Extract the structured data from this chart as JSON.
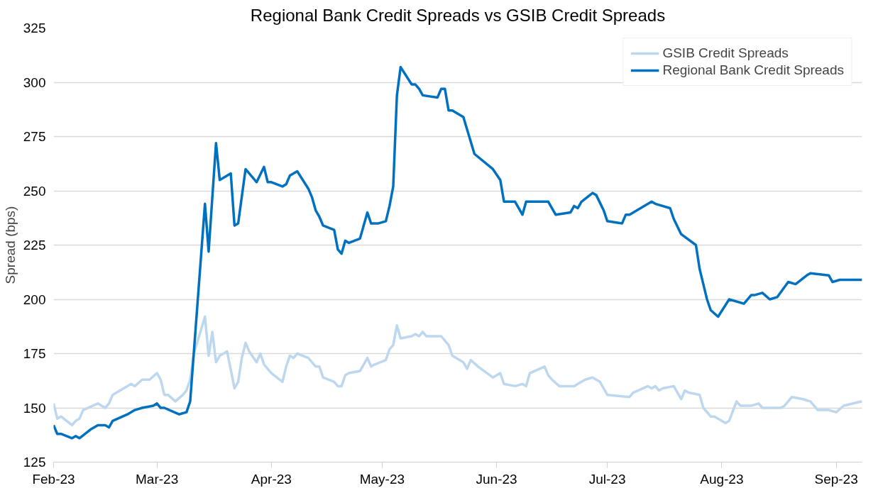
{
  "chart_data": {
    "type": "line",
    "title": "Regional Bank Credit Spreads vs GSIB Credit Spreads",
    "ylabel": "Spread (bps)",
    "ylim": [
      125,
      325
    ],
    "yticks": [
      125,
      150,
      175,
      200,
      225,
      250,
      275,
      300,
      325
    ],
    "xlim": [
      "2023-02-01",
      "2023-09-08"
    ],
    "xticks": [
      {
        "value": "2023-02-01",
        "label": "Feb-23"
      },
      {
        "value": "2023-03-01",
        "label": "Mar-23"
      },
      {
        "value": "2023-04-01",
        "label": "Apr-23"
      },
      {
        "value": "2023-05-01",
        "label": "May-23"
      },
      {
        "value": "2023-06-01",
        "label": "Jun-23"
      },
      {
        "value": "2023-07-01",
        "label": "Jul-23"
      },
      {
        "value": "2023-08-01",
        "label": "Aug-23"
      },
      {
        "value": "2023-09-01",
        "label": "Sep-23"
      }
    ],
    "grid": "y",
    "legend": "top right",
    "marker": "none",
    "line_style": "solid",
    "series": [
      {
        "name": "GSIB Credit Spreads",
        "color": "#bdd7ee",
        "x": [
          "2023-02-01",
          "2023-02-02",
          "2023-02-03",
          "2023-02-06",
          "2023-02-07",
          "2023-02-08",
          "2023-02-09",
          "2023-02-13",
          "2023-02-15",
          "2023-02-16",
          "2023-02-17",
          "2023-02-22",
          "2023-02-23",
          "2023-02-25",
          "2023-02-27",
          "2023-03-01",
          "2023-03-02",
          "2023-03-03",
          "2023-03-04",
          "2023-03-06",
          "2023-03-08",
          "2023-03-09",
          "2023-03-10",
          "2023-03-11",
          "2023-03-14",
          "2023-03-15",
          "2023-03-16",
          "2023-03-17",
          "2023-03-18",
          "2023-03-20",
          "2023-03-22",
          "2023-03-23",
          "2023-03-24",
          "2023-03-25",
          "2023-03-26",
          "2023-03-28",
          "2023-03-29",
          "2023-03-30",
          "2023-04-01",
          "2023-04-04",
          "2023-04-05",
          "2023-04-06",
          "2023-04-07",
          "2023-04-08",
          "2023-04-11",
          "2023-04-12",
          "2023-04-13",
          "2023-04-14",
          "2023-04-15",
          "2023-04-18",
          "2023-04-19",
          "2023-04-20",
          "2023-04-21",
          "2023-04-22",
          "2023-04-25",
          "2023-04-26",
          "2023-04-27",
          "2023-04-28",
          "2023-04-29",
          "2023-05-02",
          "2023-05-03",
          "2023-05-04",
          "2023-05-05",
          "2023-05-06",
          "2023-05-09",
          "2023-05-10",
          "2023-05-11",
          "2023-05-12",
          "2023-05-13",
          "2023-05-17",
          "2023-05-19",
          "2023-05-20",
          "2023-05-23",
          "2023-05-24",
          "2023-05-25",
          "2023-05-27",
          "2023-05-31",
          "2023-06-02",
          "2023-06-03",
          "2023-06-06",
          "2023-06-08",
          "2023-06-09",
          "2023-06-10",
          "2023-06-14",
          "2023-06-15",
          "2023-06-16",
          "2023-06-18",
          "2023-06-22",
          "2023-06-23",
          "2023-06-25",
          "2023-06-27",
          "2023-06-29",
          "2023-07-01",
          "2023-07-07",
          "2023-07-08",
          "2023-07-12",
          "2023-07-13",
          "2023-07-14",
          "2023-07-15",
          "2023-07-16",
          "2023-07-19",
          "2023-07-20",
          "2023-07-21",
          "2023-07-22",
          "2023-07-23",
          "2023-07-26",
          "2023-07-27",
          "2023-07-29",
          "2023-07-30",
          "2023-08-02",
          "2023-08-03",
          "2023-08-05",
          "2023-08-06",
          "2023-08-09",
          "2023-08-11",
          "2023-08-12",
          "2023-08-17",
          "2023-08-18",
          "2023-08-20",
          "2023-08-23",
          "2023-08-25",
          "2023-08-27",
          "2023-08-30",
          "2023-09-01",
          "2023-09-03",
          "2023-09-08"
        ],
        "values": [
          152,
          145,
          146,
          142,
          144,
          145,
          149,
          152,
          150,
          152,
          156,
          161,
          160,
          163,
          163,
          166,
          163,
          156,
          156,
          153,
          156,
          158,
          163,
          175,
          192,
          174,
          185,
          171,
          174,
          176,
          159,
          162,
          173,
          180,
          176,
          171,
          175,
          170,
          166,
          162,
          169,
          174,
          173,
          175,
          173,
          171,
          169,
          169,
          164,
          162,
          160,
          160,
          165,
          166,
          167,
          170,
          173,
          169,
          170,
          172,
          177,
          179,
          188,
          182,
          183,
          184,
          183,
          185,
          183,
          183,
          179,
          174,
          171,
          168,
          172,
          169,
          164,
          166,
          161,
          160,
          161,
          160,
          166,
          169,
          165,
          163,
          160,
          160,
          161,
          163,
          164,
          162,
          156,
          155,
          157,
          160,
          159,
          160,
          158,
          159,
          160,
          157,
          154,
          158,
          157,
          156,
          150,
          146,
          146,
          143,
          144,
          153,
          151,
          151,
          152,
          150,
          150,
          151,
          155,
          154,
          153,
          149,
          149,
          148,
          151,
          153
        ]
      },
      {
        "name": "Regional Bank Credit Spreads",
        "color": "#0070c0",
        "x": [
          "2023-02-01",
          "2023-02-02",
          "2023-02-03",
          "2023-02-06",
          "2023-02-07",
          "2023-02-08",
          "2023-02-11",
          "2023-02-13",
          "2023-02-15",
          "2023-02-16",
          "2023-02-17",
          "2023-02-21",
          "2023-02-23",
          "2023-02-25",
          "2023-02-28",
          "2023-03-01",
          "2023-03-02",
          "2023-03-03",
          "2023-03-07",
          "2023-03-09",
          "2023-03-10",
          "2023-03-14",
          "2023-03-15",
          "2023-03-17",
          "2023-03-18",
          "2023-03-21",
          "2023-03-22",
          "2023-03-23",
          "2023-03-25",
          "2023-03-28",
          "2023-03-30",
          "2023-03-31",
          "2023-04-01",
          "2023-04-04",
          "2023-04-05",
          "2023-04-06",
          "2023-04-08",
          "2023-04-11",
          "2023-04-12",
          "2023-04-13",
          "2023-04-14",
          "2023-04-15",
          "2023-04-18",
          "2023-04-19",
          "2023-04-20",
          "2023-04-21",
          "2023-04-22",
          "2023-04-25",
          "2023-04-27",
          "2023-04-28",
          "2023-04-30",
          "2023-05-02",
          "2023-05-03",
          "2023-05-04",
          "2023-05-05",
          "2023-05-06",
          "2023-05-09",
          "2023-05-10",
          "2023-05-11",
          "2023-05-12",
          "2023-05-16",
          "2023-05-17",
          "2023-05-18",
          "2023-05-19",
          "2023-05-20",
          "2023-05-23",
          "2023-05-26",
          "2023-05-31",
          "2023-06-02",
          "2023-06-03",
          "2023-06-06",
          "2023-06-08",
          "2023-06-09",
          "2023-06-15",
          "2023-06-17",
          "2023-06-21",
          "2023-06-22",
          "2023-06-23",
          "2023-06-24",
          "2023-06-27",
          "2023-06-28",
          "2023-06-30",
          "2023-07-01",
          "2023-07-05",
          "2023-07-06",
          "2023-07-07",
          "2023-07-13",
          "2023-07-14",
          "2023-07-18",
          "2023-07-19",
          "2023-07-21",
          "2023-07-25",
          "2023-07-26",
          "2023-07-27",
          "2023-07-28",
          "2023-07-29",
          "2023-07-31",
          "2023-08-03",
          "2023-08-07",
          "2023-08-09",
          "2023-08-10",
          "2023-08-12",
          "2023-08-14",
          "2023-08-16",
          "2023-08-19",
          "2023-08-21",
          "2023-08-24",
          "2023-08-25",
          "2023-08-30",
          "2023-08-31",
          "2023-09-02",
          "2023-09-06",
          "2023-09-08"
        ],
        "values": [
          142,
          138,
          138,
          136,
          137,
          136,
          140,
          142,
          142,
          141,
          144,
          147,
          149,
          150,
          151,
          152,
          150,
          150,
          147,
          148,
          153,
          244,
          222,
          272,
          255,
          258,
          234,
          235,
          260,
          254,
          261,
          254,
          254,
          252,
          253,
          257,
          259,
          251,
          247,
          241,
          238,
          234,
          232,
          223,
          221,
          227,
          226,
          228,
          240,
          235,
          235,
          236,
          243,
          252,
          294,
          307,
          299,
          299,
          297,
          294,
          293,
          297,
          297,
          287,
          287,
          284,
          267,
          260,
          255,
          245,
          245,
          239,
          245,
          245,
          239,
          240,
          243,
          242,
          245,
          249,
          248,
          241,
          236,
          235,
          239,
          239,
          245,
          244,
          242,
          237,
          230,
          225,
          214,
          207,
          200,
          195,
          192,
          200,
          198,
          202,
          202,
          203,
          200,
          201,
          208,
          207,
          211,
          212,
          211,
          208,
          209,
          209,
          209
        ]
      }
    ]
  }
}
